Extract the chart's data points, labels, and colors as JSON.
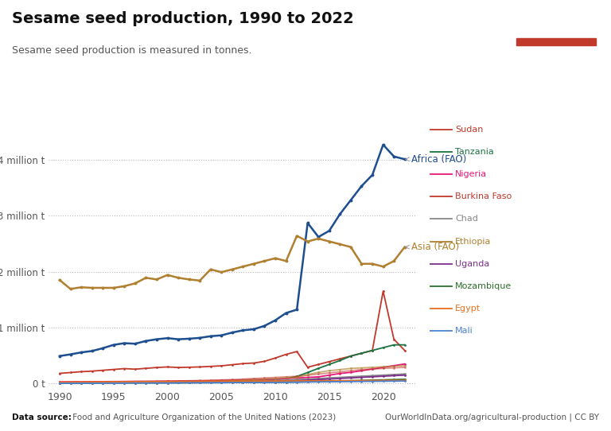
{
  "title": "Sesame seed production, 1990 to 2022",
  "subtitle": "Sesame seed production is measured in tonnes.",
  "datasource_bold": "Data source:",
  "datasource_rest": " Food and Agriculture Organization of the United Nations (2023)",
  "website": "OurWorldInData.org/agricultural-production | CC BY",
  "years": [
    1990,
    1991,
    1992,
    1993,
    1994,
    1995,
    1996,
    1997,
    1998,
    1999,
    2000,
    2001,
    2002,
    2003,
    2004,
    2005,
    2006,
    2007,
    2008,
    2009,
    2010,
    2011,
    2012,
    2013,
    2014,
    2015,
    2016,
    2017,
    2018,
    2019,
    2020,
    2021,
    2022
  ],
  "series": {
    "Africa (FAO)": {
      "color": "#1d4e8f",
      "lw": 1.8,
      "values": [
        490000,
        520000,
        555000,
        580000,
        630000,
        690000,
        720000,
        710000,
        760000,
        790000,
        810000,
        790000,
        800000,
        815000,
        845000,
        860000,
        910000,
        950000,
        970000,
        1030000,
        1130000,
        1260000,
        1320000,
        2870000,
        2620000,
        2730000,
        3030000,
        3280000,
        3530000,
        3730000,
        4270000,
        4060000,
        4010000
      ]
    },
    "Asia (FAO)": {
      "color": "#b08030",
      "lw": 1.8,
      "values": [
        1850000,
        1690000,
        1720000,
        1710000,
        1710000,
        1710000,
        1740000,
        1790000,
        1890000,
        1860000,
        1940000,
        1890000,
        1860000,
        1840000,
        2040000,
        1990000,
        2040000,
        2090000,
        2140000,
        2190000,
        2240000,
        2190000,
        2640000,
        2540000,
        2590000,
        2540000,
        2490000,
        2440000,
        2140000,
        2140000,
        2090000,
        2190000,
        2440000
      ]
    },
    "Sudan": {
      "color": "#c0392b",
      "lw": 1.3,
      "values": [
        180000,
        195000,
        210000,
        220000,
        235000,
        250000,
        265000,
        255000,
        270000,
        285000,
        295000,
        285000,
        290000,
        295000,
        305000,
        315000,
        335000,
        355000,
        365000,
        395000,
        455000,
        520000,
        570000,
        290000,
        340000,
        390000,
        440000,
        490000,
        540000,
        590000,
        1650000,
        790000,
        590000
      ]
    },
    "Tanzania": {
      "color": "#1a7340",
      "lw": 1.3,
      "values": [
        18000,
        20000,
        22000,
        23000,
        24000,
        25000,
        26000,
        28000,
        30000,
        31000,
        33000,
        34000,
        36000,
        38000,
        40000,
        43000,
        48000,
        53000,
        58000,
        63000,
        68000,
        88000,
        125000,
        195000,
        270000,
        340000,
        410000,
        490000,
        540000,
        590000,
        640000,
        690000,
        690000
      ]
    },
    "Nigeria": {
      "color": "#e8187a",
      "lw": 1.3,
      "values": [
        28000,
        30000,
        31000,
        32000,
        33000,
        34000,
        35000,
        36000,
        37000,
        38000,
        40000,
        42000,
        44000,
        46000,
        48000,
        53000,
        58000,
        63000,
        68000,
        73000,
        78000,
        88000,
        98000,
        108000,
        118000,
        148000,
        178000,
        198000,
        228000,
        258000,
        288000,
        318000,
        348000
      ]
    },
    "Burkina Faso": {
      "color": "#c0392b",
      "lw": 1.3,
      "alpha": 0.55,
      "values": [
        18000,
        20000,
        23000,
        26000,
        28000,
        30000,
        33000,
        36000,
        38000,
        40000,
        43000,
        46000,
        48000,
        53000,
        58000,
        63000,
        68000,
        78000,
        88000,
        98000,
        108000,
        118000,
        128000,
        148000,
        168000,
        188000,
        208000,
        228000,
        248000,
        258000,
        268000,
        278000,
        288000
      ]
    },
    "Chad": {
      "color": "#888888",
      "lw": 1.3,
      "values": [
        9000,
        10000,
        11000,
        12000,
        13000,
        14000,
        15000,
        16000,
        17000,
        18000,
        19000,
        21000,
        23000,
        25000,
        27000,
        29000,
        34000,
        39000,
        44000,
        49000,
        54000,
        59000,
        69000,
        79000,
        89000,
        99000,
        109000,
        119000,
        129000,
        139000,
        149000,
        159000,
        169000
      ]
    },
    "Ethiopia": {
      "color": "#b08030",
      "lw": 1.3,
      "alpha": 0.65,
      "values": [
        13000,
        14000,
        15000,
        16000,
        17000,
        18000,
        20000,
        22000,
        24000,
        26000,
        28000,
        30000,
        33000,
        36000,
        38000,
        43000,
        48000,
        58000,
        68000,
        78000,
        88000,
        98000,
        108000,
        158000,
        198000,
        228000,
        248000,
        268000,
        278000,
        288000,
        298000,
        308000,
        318000
      ]
    },
    "Uganda": {
      "color": "#7b2d8b",
      "lw": 1.3,
      "values": [
        9000,
        10000,
        11000,
        12000,
        13000,
        14000,
        15000,
        16000,
        17000,
        18000,
        19000,
        21000,
        23000,
        25000,
        27000,
        29000,
        31000,
        34000,
        37000,
        39000,
        41000,
        44000,
        49000,
        59000,
        69000,
        79000,
        89000,
        99000,
        109000,
        119000,
        129000,
        139000,
        149000
      ]
    },
    "Mozambique": {
      "color": "#2d6e2d",
      "lw": 1.3,
      "values": [
        4000,
        4500,
        5000,
        5500,
        6000,
        6500,
        7000,
        7500,
        8000,
        8500,
        9000,
        10000,
        11000,
        12000,
        13000,
        14000,
        15000,
        16000,
        17000,
        18000,
        19000,
        21000,
        24000,
        29000,
        34000,
        39000,
        44000,
        49000,
        54000,
        59000,
        64000,
        69000,
        74000
      ]
    },
    "Egypt": {
      "color": "#e87020",
      "lw": 1.3,
      "values": [
        23000,
        24000,
        25000,
        26000,
        27000,
        28000,
        29000,
        30000,
        31000,
        32000,
        33000,
        34000,
        35000,
        36000,
        37000,
        38000,
        39000,
        40000,
        41000,
        42000,
        43000,
        44000,
        45000,
        46000,
        47000,
        48000,
        49000,
        50000,
        51000,
        52000,
        53000,
        54000,
        55000
      ]
    },
    "Mali": {
      "color": "#5080d0",
      "lw": 1.3,
      "values": [
        4000,
        4500,
        5000,
        5500,
        6000,
        6500,
        7000,
        7500,
        8000,
        8500,
        9000,
        10000,
        11000,
        12000,
        13000,
        14000,
        15000,
        16000,
        17000,
        18000,
        19000,
        21000,
        23000,
        25000,
        27000,
        29000,
        31000,
        33000,
        35000,
        37000,
        39000,
        41000,
        43000
      ]
    }
  },
  "yticks": [
    0,
    1000000,
    2000000,
    3000000,
    4000000
  ],
  "ytick_labels": [
    "0 t",
    "1 million t",
    "2 million t",
    "3 million t",
    "4 million t"
  ],
  "xticks": [
    1990,
    1995,
    2000,
    2005,
    2010,
    2015,
    2020
  ],
  "xlim": [
    1989,
    2023
  ],
  "ylim": [
    -80000,
    4700000
  ],
  "background_color": "#ffffff",
  "legend_order": [
    "Sudan",
    "Tanzania",
    "Nigeria",
    "Burkina Faso",
    "Chad",
    "Ethiopia",
    "Uganda",
    "Mozambique",
    "Egypt",
    "Mali"
  ],
  "legend_colors": {
    "Sudan": "#c0392b",
    "Tanzania": "#1a7340",
    "Nigeria": "#e8187a",
    "Burkina Faso": "#c0392b",
    "Chad": "#888888",
    "Ethiopia": "#b08030",
    "Uganda": "#7b2d8b",
    "Mozambique": "#2d6e2d",
    "Egypt": "#e87020",
    "Mali": "#5080d0"
  }
}
